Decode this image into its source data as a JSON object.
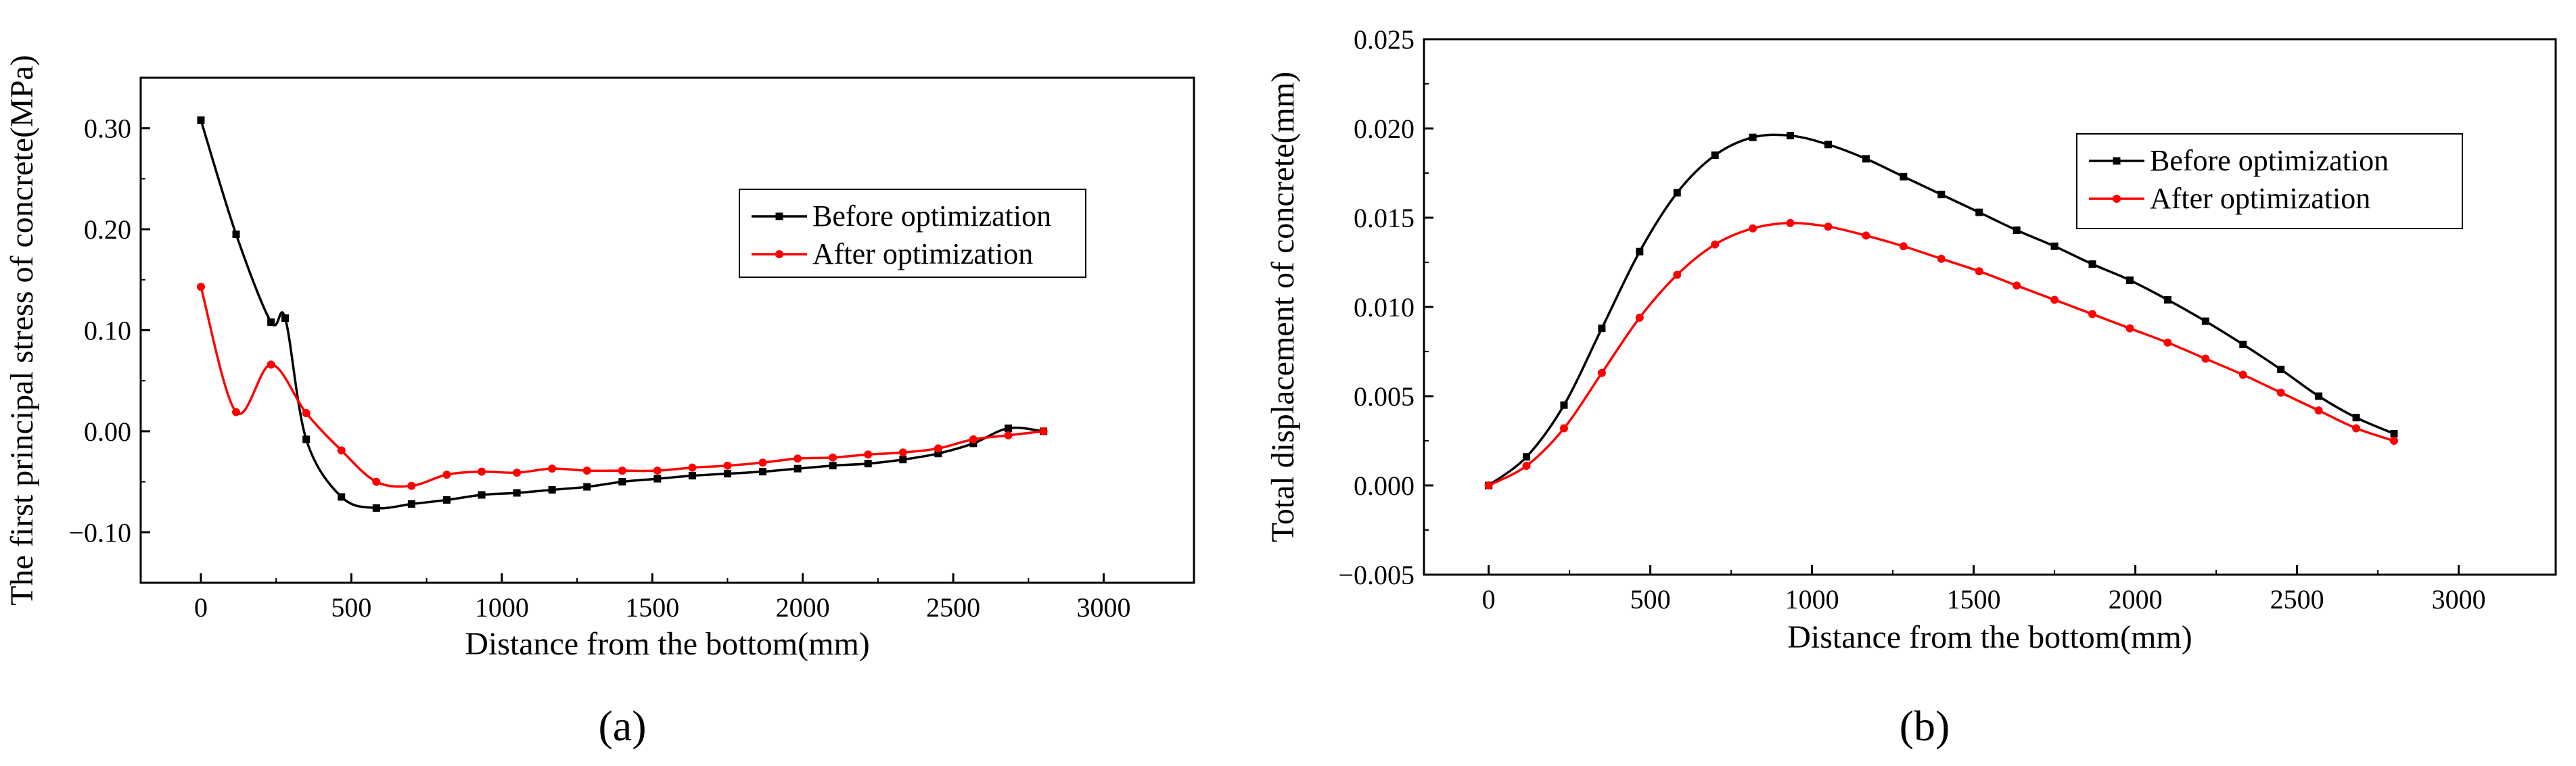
{
  "figure": {
    "panel_labels": [
      "(a)",
      "(b)"
    ]
  },
  "colors": {
    "before": "#000000",
    "after": "#ff0000",
    "axes": "#000000"
  },
  "chart_data": [
    {
      "type": "line",
      "panel": "(a)",
      "title": "",
      "xlabel": "Distance from the bottom(mm)",
      "ylabel": "The first principal stress of concrete(MPa)",
      "xlim": [
        -200,
        3300
      ],
      "ylim": [
        -0.15,
        0.35
      ],
      "xticks": [
        0,
        500,
        1000,
        1500,
        2000,
        2500,
        3000
      ],
      "yticks": [
        -0.1,
        0.0,
        0.1,
        0.2,
        0.3
      ],
      "ytick_labels": [
        "−0.10",
        "0.00",
        "0.10",
        "0.20",
        "0.30"
      ],
      "xtick_labels": [
        "0",
        "500",
        "1000",
        "1500",
        "2000",
        "2500",
        "3000"
      ],
      "legend_position": "upper-right",
      "series": [
        {
          "name": "Before optimization",
          "color": "#000000",
          "marker": "square",
          "x": [
            0,
            117,
            233,
            280,
            350,
            467,
            583,
            700,
            817,
            933,
            1050,
            1167,
            1283,
            1400,
            1517,
            1633,
            1750,
            1867,
            1983,
            2100,
            2217,
            2333,
            2450,
            2567,
            2683,
            2800
          ],
          "y": [
            0.308,
            0.195,
            0.108,
            0.112,
            -0.008,
            -0.065,
            -0.076,
            -0.072,
            -0.068,
            -0.063,
            -0.061,
            -0.058,
            -0.055,
            -0.05,
            -0.047,
            -0.044,
            -0.042,
            -0.04,
            -0.037,
            -0.034,
            -0.032,
            -0.028,
            -0.022,
            -0.012,
            0.003,
            0.0
          ]
        },
        {
          "name": "After optimization",
          "color": "#ff0000",
          "marker": "circle",
          "x": [
            0,
            117,
            233,
            350,
            467,
            583,
            700,
            817,
            933,
            1050,
            1167,
            1283,
            1400,
            1517,
            1633,
            1750,
            1867,
            1983,
            2100,
            2217,
            2333,
            2450,
            2567,
            2683,
            2800
          ],
          "y": [
            0.143,
            0.019,
            0.066,
            0.018,
            -0.019,
            -0.05,
            -0.054,
            -0.043,
            -0.04,
            -0.041,
            -0.037,
            -0.039,
            -0.039,
            -0.039,
            -0.036,
            -0.034,
            -0.031,
            -0.027,
            -0.026,
            -0.023,
            -0.021,
            -0.017,
            -0.008,
            -0.004,
            0.0
          ]
        }
      ]
    },
    {
      "type": "line",
      "panel": "(b)",
      "title": "",
      "xlabel": "Distance from the bottom(mm)",
      "ylabel": "Total displacement of concrete(mm)",
      "xlim": [
        -200,
        3300
      ],
      "ylim": [
        -0.005,
        0.025
      ],
      "xticks": [
        0,
        500,
        1000,
        1500,
        2000,
        2500,
        3000
      ],
      "yticks": [
        -0.005,
        0.0,
        0.005,
        0.01,
        0.015,
        0.02,
        0.025
      ],
      "ytick_labels": [
        "−0.005",
        "0.000",
        "0.005",
        "0.010",
        "0.015",
        "0.020",
        "0.025"
      ],
      "xtick_labels": [
        "0",
        "500",
        "1000",
        "1500",
        "2000",
        "2500",
        "3000"
      ],
      "legend_position": "upper-right",
      "series": [
        {
          "name": "Before optimization",
          "color": "#000000",
          "marker": "square",
          "x": [
            0,
            117,
            233,
            350,
            467,
            583,
            700,
            817,
            933,
            1050,
            1167,
            1283,
            1400,
            1517,
            1633,
            1750,
            1867,
            1983,
            2100,
            2217,
            2333,
            2450,
            2567,
            2683,
            2800
          ],
          "y": [
            0.0,
            0.0016,
            0.0045,
            0.0088,
            0.0131,
            0.0164,
            0.0185,
            0.0195,
            0.0196,
            0.0191,
            0.0183,
            0.0173,
            0.0163,
            0.0153,
            0.0143,
            0.0134,
            0.0124,
            0.0115,
            0.0104,
            0.0092,
            0.0079,
            0.0065,
            0.005,
            0.0038,
            0.0029
          ]
        },
        {
          "name": "After optimization",
          "color": "#ff0000",
          "marker": "circle",
          "x": [
            0,
            117,
            233,
            350,
            467,
            583,
            700,
            817,
            933,
            1050,
            1167,
            1283,
            1400,
            1517,
            1633,
            1750,
            1867,
            1983,
            2100,
            2217,
            2333,
            2450,
            2567,
            2683,
            2800
          ],
          "y": [
            0.0,
            0.0011,
            0.0032,
            0.0063,
            0.0094,
            0.0118,
            0.0135,
            0.0144,
            0.0147,
            0.0145,
            0.014,
            0.0134,
            0.0127,
            0.012,
            0.0112,
            0.0104,
            0.0096,
            0.0088,
            0.008,
            0.0071,
            0.0062,
            0.0052,
            0.0042,
            0.0032,
            0.0025
          ]
        }
      ]
    }
  ]
}
